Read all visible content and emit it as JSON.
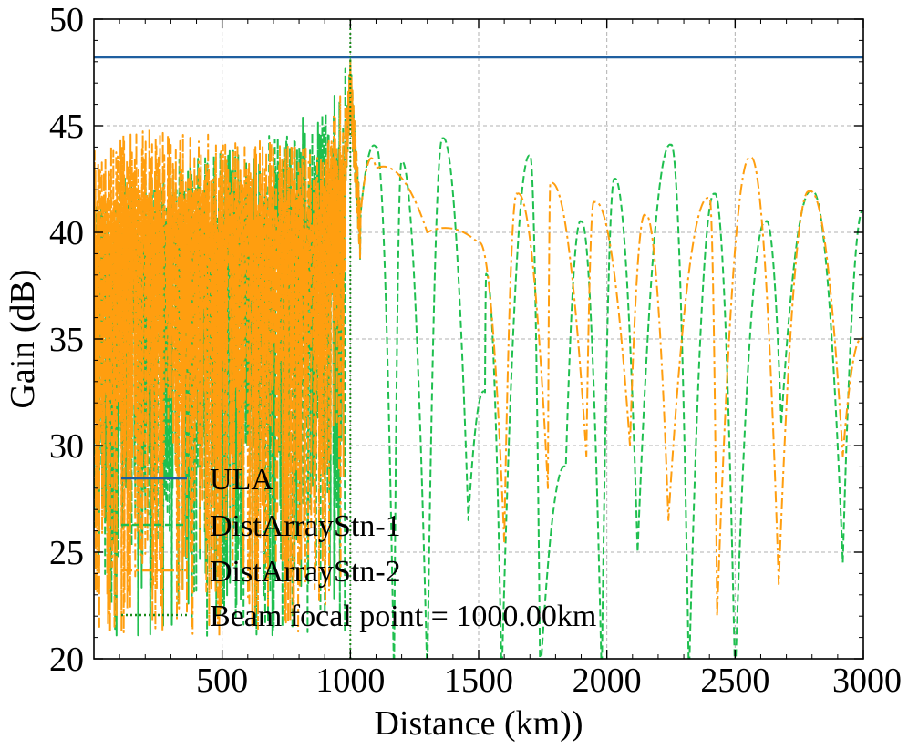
{
  "chart_data": {
    "type": "line",
    "title": "",
    "xlabel": "Distance (km))",
    "ylabel": "Gain (dB)",
    "xlim": [
      0,
      3000
    ],
    "ylim": [
      20,
      50
    ],
    "xticks": [
      500,
      1000,
      1500,
      2000,
      2500,
      3000
    ],
    "xtick_labels": [
      "500",
      "1000",
      "1500",
      "2000",
      "2500",
      "3000"
    ],
    "yticks": [
      20,
      25,
      30,
      35,
      40,
      45,
      50
    ],
    "ytick_labels": [
      "20",
      "25",
      "30",
      "35",
      "40",
      "45",
      "50"
    ],
    "grid": true,
    "legend_position": "lower-left",
    "series": [
      {
        "name": "ULA",
        "style": "solid",
        "color": "#1f5fa0",
        "x": [
          0,
          3000
        ],
        "y": [
          48.2,
          48.2
        ]
      },
      {
        "name": "DistArrayStn-1",
        "style": "dashed",
        "color": "#1fbf4f",
        "envelope": [
          [
            0,
            42
          ],
          [
            300,
            43.5
          ],
          [
            600,
            44
          ],
          [
            900,
            46
          ],
          [
            1000,
            48.1
          ],
          [
            1100,
            44
          ],
          [
            1200,
            43.3
          ],
          [
            1360,
            44.4
          ],
          [
            1530,
            38
          ],
          [
            1700,
            43.6
          ],
          [
            1900,
            40.5
          ],
          [
            2030,
            42.5
          ],
          [
            2250,
            44.1
          ],
          [
            2420,
            41.8
          ],
          [
            2620,
            40.5
          ],
          [
            2800,
            41.9
          ],
          [
            3000,
            41
          ]
        ],
        "nulls": [
          [
            1170,
            20
          ],
          [
            1300,
            20
          ],
          [
            1460,
            27.5
          ],
          [
            1525,
            33.5
          ],
          [
            1590,
            20
          ],
          [
            1740,
            20
          ],
          [
            1840,
            30
          ],
          [
            1980,
            20
          ],
          [
            2120,
            26
          ],
          [
            2320,
            20
          ],
          [
            2500,
            20
          ],
          [
            2680,
            32
          ],
          [
            2920,
            25.5
          ]
        ],
        "regions": [
          {
            "x_from": 0,
            "x_to": 1000,
            "y_from": 21,
            "y_to": 46,
            "pattern": "dense oscillation"
          }
        ]
      },
      {
        "name": "DistArrayStn-2",
        "style": "dashdot",
        "color": "#ff9e0f",
        "envelope": [
          [
            0,
            44
          ],
          [
            200,
            45
          ],
          [
            500,
            44.5
          ],
          [
            900,
            44
          ],
          [
            1000,
            48.1
          ],
          [
            1100,
            43
          ],
          [
            1300,
            40
          ],
          [
            1500,
            39.5
          ],
          [
            1650,
            41.8
          ],
          [
            1780,
            42.3
          ],
          [
            1950,
            41.4
          ],
          [
            2150,
            40.8
          ],
          [
            2400,
            41.6
          ],
          [
            2560,
            43.5
          ],
          [
            2790,
            41.9
          ],
          [
            3000,
            35
          ]
        ],
        "nulls": [
          [
            1600,
            26.5
          ],
          [
            1770,
            29
          ],
          [
            1920,
            30.5
          ],
          [
            2090,
            31
          ],
          [
            2240,
            27.5
          ],
          [
            2430,
            23
          ],
          [
            2670,
            24.5
          ],
          [
            2920,
            30.5
          ]
        ],
        "regions": [
          {
            "x_from": 0,
            "x_to": 1000,
            "y_from": 21,
            "y_to": 46,
            "pattern": "dense oscillation"
          }
        ]
      },
      {
        "name": "Beam focal point = 1000.00km",
        "style": "dotted",
        "color": "#1a8a1a",
        "x": [
          1000,
          1000
        ],
        "y": [
          20,
          50
        ]
      }
    ]
  }
}
